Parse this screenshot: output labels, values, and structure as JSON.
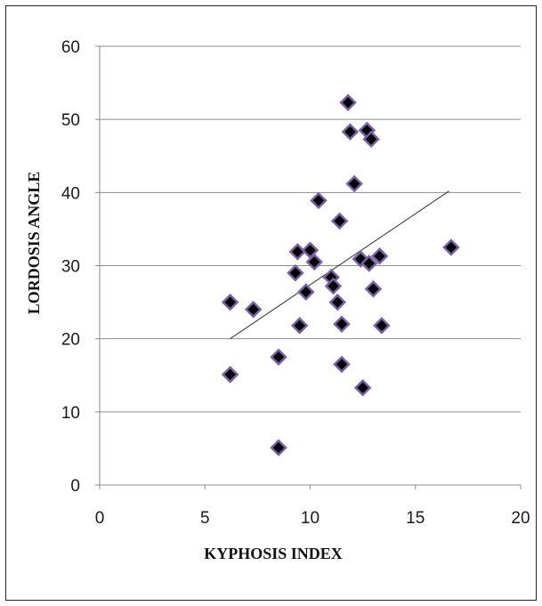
{
  "chart_data": {
    "type": "scatter",
    "title": "",
    "xlabel": "KYPHOSIS INDEX",
    "ylabel": "LORDOSIS ANGLE",
    "xlim": [
      0,
      20
    ],
    "ylim": [
      0,
      60
    ],
    "x_ticks": [
      0,
      5,
      10,
      15,
      20
    ],
    "y_ticks": [
      0,
      10,
      20,
      30,
      40,
      50,
      60
    ],
    "x_tick_labels": [
      "0",
      "5",
      "10",
      "15",
      "20"
    ],
    "y_tick_labels": [
      "0",
      "10",
      "20",
      "30",
      "40",
      "50",
      "60"
    ],
    "grid": "horizontal",
    "legend": "none",
    "marker": "diamond",
    "marker_fill": "#000000",
    "marker_edge": "#7b5fa8",
    "trendline_color": "#333333",
    "points": [
      {
        "x": 6.2,
        "y": 25.0
      },
      {
        "x": 6.2,
        "y": 15.1
      },
      {
        "x": 7.3,
        "y": 24.0
      },
      {
        "x": 8.5,
        "y": 17.5
      },
      {
        "x": 8.5,
        "y": 5.1
      },
      {
        "x": 9.3,
        "y": 29.0
      },
      {
        "x": 9.4,
        "y": 31.9
      },
      {
        "x": 9.5,
        "y": 21.8
      },
      {
        "x": 9.8,
        "y": 26.4
      },
      {
        "x": 10.0,
        "y": 32.1
      },
      {
        "x": 10.2,
        "y": 30.5
      },
      {
        "x": 10.4,
        "y": 38.9
      },
      {
        "x": 11.0,
        "y": 28.4
      },
      {
        "x": 11.1,
        "y": 27.2
      },
      {
        "x": 11.3,
        "y": 25.0
      },
      {
        "x": 11.4,
        "y": 36.1
      },
      {
        "x": 11.5,
        "y": 22.0
      },
      {
        "x": 11.5,
        "y": 16.5
      },
      {
        "x": 11.8,
        "y": 52.3
      },
      {
        "x": 11.9,
        "y": 48.3
      },
      {
        "x": 12.1,
        "y": 41.2
      },
      {
        "x": 12.4,
        "y": 30.9
      },
      {
        "x": 12.5,
        "y": 13.3
      },
      {
        "x": 12.7,
        "y": 48.5
      },
      {
        "x": 12.8,
        "y": 30.3
      },
      {
        "x": 12.9,
        "y": 47.3
      },
      {
        "x": 13.0,
        "y": 26.8
      },
      {
        "x": 13.3,
        "y": 31.3
      },
      {
        "x": 13.4,
        "y": 21.8
      },
      {
        "x": 16.7,
        "y": 32.5
      }
    ],
    "trendline": {
      "x": [
        6.2,
        16.6
      ],
      "y": [
        20.0,
        40.2
      ]
    }
  }
}
